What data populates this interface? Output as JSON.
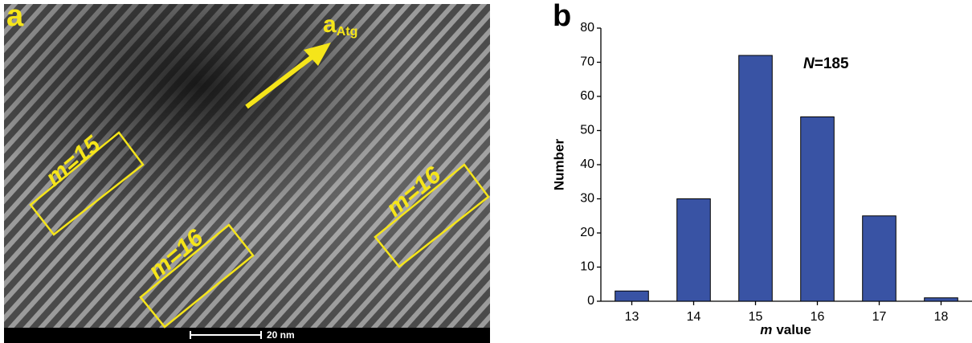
{
  "panel_a": {
    "label": "a",
    "vector_label": "a",
    "vector_subscript": "Atg",
    "boxes": [
      "m=15",
      "m=16",
      "m=16"
    ],
    "scale_bar": "20 nm"
  },
  "chart_data": {
    "type": "bar",
    "panel_label": "b",
    "categories": [
      "13",
      "14",
      "15",
      "16",
      "17",
      "18"
    ],
    "values": [
      3,
      30,
      72,
      54,
      25,
      1
    ],
    "color": "#3953a4",
    "ylim": [
      0,
      80
    ],
    "yticks": [
      0,
      10,
      20,
      30,
      40,
      50,
      60,
      70,
      80
    ],
    "y_label": "Number",
    "x_label_var": "m",
    "x_label": "value",
    "annotation_var": "N",
    "annotation_text": "=185"
  }
}
